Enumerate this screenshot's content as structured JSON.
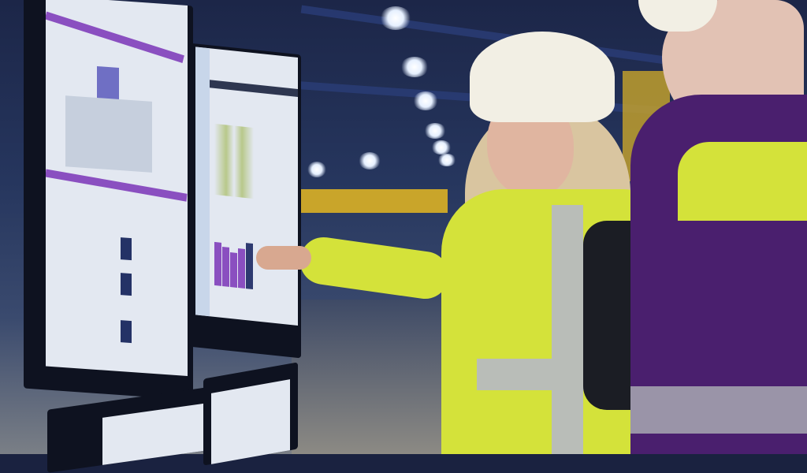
{
  "scene": {
    "description_tags": [
      "factory",
      "monitors",
      "workers",
      "hard-hat",
      "hi-vis-vest"
    ],
    "colors": {
      "background": "#1c2648",
      "screen": "#e3e8f1",
      "screen_accent": "#8a4fc0",
      "vest": "#d4e23a",
      "helmet": "#f2efe4",
      "jacket_purple": "#4a1f6e"
    }
  }
}
